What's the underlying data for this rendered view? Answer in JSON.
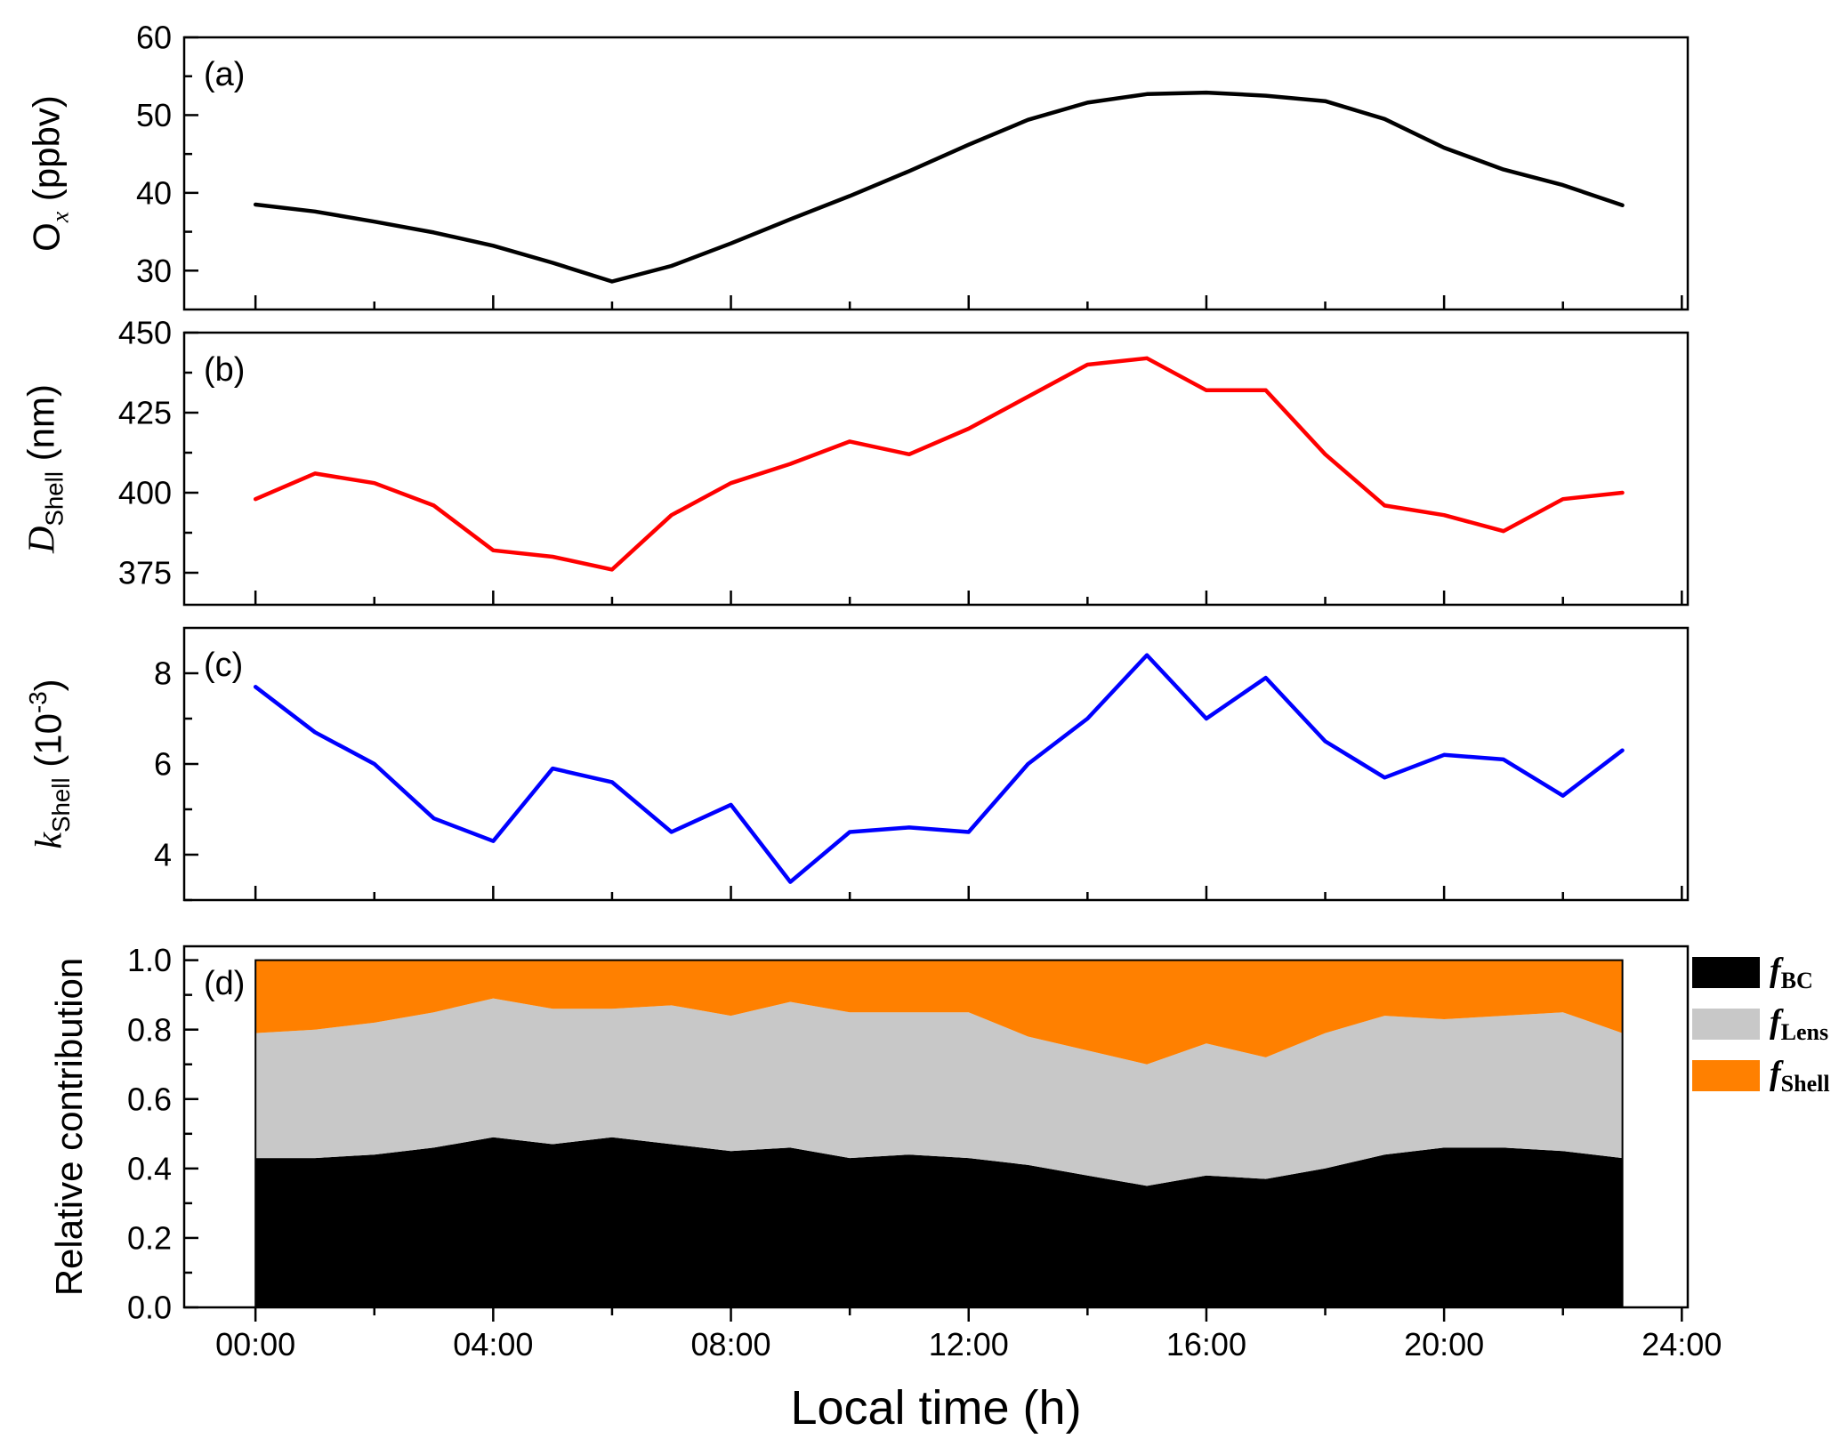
{
  "figure": {
    "background": "#FFFFFF",
    "xlim": [
      -1.2,
      24.1
    ],
    "x_tick_hours": [
      0,
      4,
      8,
      12,
      16,
      20,
      24
    ],
    "x_tick_labels": [
      "00:00",
      "04:00",
      "08:00",
      "12:00",
      "16:00",
      "20:00",
      "24:00"
    ],
    "x_minor_hours": [
      2,
      6,
      10,
      14,
      18,
      22
    ]
  },
  "chart_data": [
    {
      "id": "a",
      "type": "line",
      "panel_label": "(a)",
      "ylabel": "Ox (ppbv)",
      "ylabel_parts": [
        {
          "t": "O"
        },
        {
          "t": "x",
          "sub": true,
          "it": true
        },
        {
          "t": " (ppbv)"
        }
      ],
      "color": "#000000",
      "ylim": [
        25,
        60
      ],
      "yticks": [
        30,
        40,
        50,
        60
      ],
      "ytick_labels": [
        "30",
        "40",
        "50",
        "60"
      ],
      "yminor": [
        35,
        45,
        55
      ],
      "x_hours": [
        0,
        1,
        2,
        3,
        4,
        5,
        6,
        7,
        8,
        9,
        10,
        11,
        12,
        13,
        14,
        15,
        16,
        17,
        18,
        19,
        20,
        21,
        22,
        23
      ],
      "values": [
        38.5,
        37.6,
        36.3,
        34.9,
        33.2,
        31.0,
        28.6,
        30.6,
        33.5,
        36.6,
        39.6,
        42.8,
        46.2,
        49.4,
        51.6,
        52.7,
        52.9,
        52.5,
        51.8,
        49.5,
        45.8,
        43.0,
        41.0,
        38.4
      ]
    },
    {
      "id": "b",
      "type": "line",
      "panel_label": "(b)",
      "ylabel": "DShell (nm)",
      "ylabel_parts": [
        {
          "t": "D",
          "it": true
        },
        {
          "t": "Shell",
          "sub": true
        },
        {
          "t": " (nm)"
        }
      ],
      "color": "#FF0000",
      "ylim": [
        365,
        450
      ],
      "yticks": [
        375,
        400,
        425,
        450
      ],
      "ytick_labels": [
        "375",
        "400",
        "425",
        "450"
      ],
      "yminor": [
        387.5,
        412.5,
        437.5
      ],
      "x_hours": [
        0,
        1,
        2,
        3,
        4,
        5,
        6,
        7,
        8,
        9,
        10,
        11,
        12,
        13,
        14,
        15,
        16,
        17,
        18,
        19,
        20,
        21,
        22,
        23
      ],
      "values": [
        398,
        406,
        403,
        396,
        382,
        380,
        376,
        393,
        403,
        409,
        416,
        412,
        420,
        430,
        440,
        442,
        432,
        432,
        412,
        396,
        393,
        388,
        398,
        400
      ]
    },
    {
      "id": "c",
      "type": "line",
      "panel_label": "(c)",
      "ylabel": "kShell (10^-3)",
      "ylabel_parts": [
        {
          "t": "k",
          "it": true
        },
        {
          "t": "Shell",
          "sub": true
        },
        {
          "t": " (10"
        },
        {
          "t": "-3",
          "sup": true
        },
        {
          "t": ")"
        }
      ],
      "color": "#0000FF",
      "ylim": [
        3,
        9
      ],
      "yticks": [
        4,
        6,
        8
      ],
      "ytick_labels": [
        "4",
        "6",
        "8"
      ],
      "yminor": [
        3,
        5,
        7
      ],
      "x_hours": [
        0,
        1,
        2,
        3,
        4,
        5,
        6,
        7,
        8,
        9,
        10,
        11,
        12,
        13,
        14,
        15,
        16,
        17,
        18,
        19,
        20,
        21,
        22,
        23
      ],
      "values": [
        7.7,
        6.7,
        6.0,
        4.8,
        4.3,
        5.9,
        5.6,
        4.5,
        5.1,
        3.4,
        4.5,
        4.6,
        4.5,
        6.0,
        7.0,
        8.4,
        7.0,
        7.9,
        6.5,
        5.7,
        6.2,
        6.1,
        5.3,
        6.3
      ]
    },
    {
      "id": "d",
      "type": "area-stacked",
      "panel_label": "(d)",
      "ylabel": "Relative contribution",
      "ylabel_parts": [
        {
          "t": "Relative contribution"
        }
      ],
      "xlabel": "Local time (h)",
      "ylim": [
        0,
        1.04
      ],
      "yticks": [
        0,
        0.2,
        0.4,
        0.6,
        0.8,
        1.0
      ],
      "ytick_labels": [
        "0.0",
        "0.2",
        "0.4",
        "0.6",
        "0.8",
        "1.0"
      ],
      "yminor": [
        0.1,
        0.3,
        0.5,
        0.7,
        0.9
      ],
      "legend_position": "right",
      "x_hours": [
        0,
        1,
        2,
        3,
        4,
        5,
        6,
        7,
        8,
        9,
        10,
        11,
        12,
        13,
        14,
        15,
        16,
        17,
        18,
        19,
        20,
        21,
        22,
        23
      ],
      "series": [
        {
          "name": "fBC",
          "legend_main": "f",
          "legend_sub": "BC",
          "color": "#000000",
          "values": [
            0.43,
            0.43,
            0.44,
            0.46,
            0.49,
            0.47,
            0.49,
            0.47,
            0.45,
            0.46,
            0.43,
            0.44,
            0.43,
            0.41,
            0.38,
            0.35,
            0.38,
            0.37,
            0.4,
            0.44,
            0.46,
            0.46,
            0.45,
            0.43
          ]
        },
        {
          "name": "fLens",
          "legend_main": "f",
          "legend_sub": "Lens",
          "color": "#C8C8C8",
          "values": [
            0.36,
            0.37,
            0.38,
            0.39,
            0.4,
            0.39,
            0.37,
            0.4,
            0.39,
            0.42,
            0.42,
            0.41,
            0.42,
            0.37,
            0.36,
            0.35,
            0.38,
            0.35,
            0.39,
            0.4,
            0.37,
            0.38,
            0.4,
            0.36
          ]
        },
        {
          "name": "fShell",
          "legend_main": "f",
          "legend_sub": "Shell",
          "color": "#FF8000",
          "values": [
            0.21,
            0.2,
            0.18,
            0.15,
            0.11,
            0.14,
            0.14,
            0.13,
            0.16,
            0.12,
            0.15,
            0.15,
            0.15,
            0.22,
            0.26,
            0.3,
            0.24,
            0.28,
            0.21,
            0.16,
            0.17,
            0.16,
            0.15,
            0.21
          ]
        }
      ]
    }
  ]
}
